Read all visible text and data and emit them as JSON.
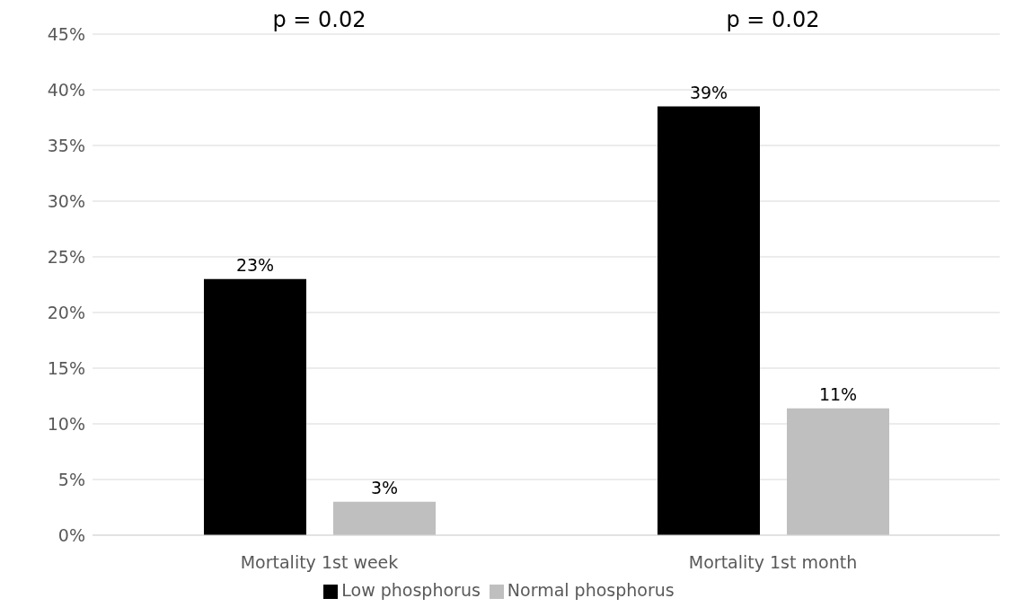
{
  "chart_data": {
    "type": "bar",
    "categories": [
      "Mortality 1st week",
      "Mortality 1st month"
    ],
    "series": [
      {
        "name": "Low phosphorus",
        "color": "#000000",
        "values": [
          23,
          38.5
        ],
        "value_labels": [
          "23%",
          "39%"
        ]
      },
      {
        "name": "Normal phosphorus",
        "color": "#bfbfbf",
        "values": [
          3,
          11.4
        ],
        "value_labels": [
          "3%",
          "11%"
        ]
      }
    ],
    "ylim": [
      0,
      45
    ],
    "yticks": [
      {
        "value": 0,
        "label": "0%"
      },
      {
        "value": 5,
        "label": "5%"
      },
      {
        "value": 10,
        "label": "10%"
      },
      {
        "value": 15,
        "label": "15%"
      },
      {
        "value": 20,
        "label": "20%"
      },
      {
        "value": 25,
        "label": "25%"
      },
      {
        "value": 30,
        "label": "30%"
      },
      {
        "value": 35,
        "label": "35%"
      },
      {
        "value": 40,
        "label": "40%"
      },
      {
        "value": 45,
        "label": "45%"
      }
    ],
    "grid": "y",
    "legend": "bottom",
    "annotations": [
      "p = 0.02",
      "p = 0.02"
    ]
  }
}
